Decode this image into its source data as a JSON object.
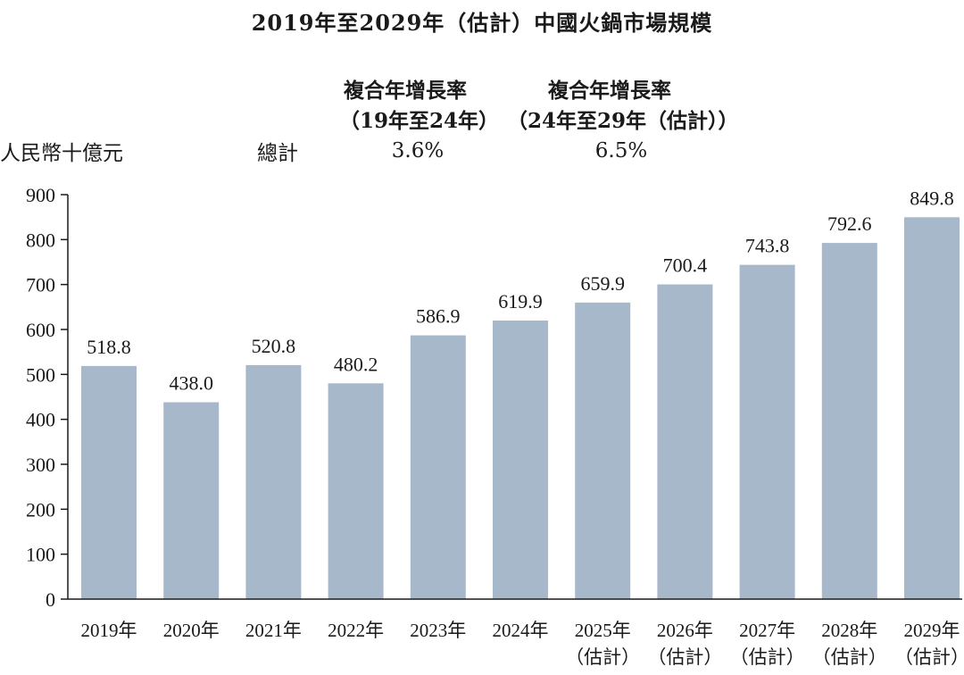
{
  "header": {
    "title": "2019年至2029年（估計）中國火鍋市場規模",
    "cagr_heading_1": "複合年增長率",
    "cagr_period_1": "（19年至24年）",
    "cagr_heading_2": "複合年增長率",
    "cagr_period_2": "（24年至29年（估計））",
    "unit_label": "人民幣十億元",
    "total_label": "總計",
    "cagr_value_1": "3.6%",
    "cagr_value_2": "6.5%"
  },
  "colors": {
    "bar": "#a8b8cb",
    "axis": "#1a1a1a",
    "text": "#1a1a1a"
  },
  "chart_data": {
    "type": "bar",
    "categories": [
      [
        "2019年"
      ],
      [
        "2020年"
      ],
      [
        "2021年"
      ],
      [
        "2022年"
      ],
      [
        "2023年"
      ],
      [
        "2024年"
      ],
      [
        "2025年",
        "（估計）"
      ],
      [
        "2026年",
        "（估計）"
      ],
      [
        "2027年",
        "（估計）"
      ],
      [
        "2028年",
        "（估計）"
      ],
      [
        "2029年",
        "（估計）"
      ]
    ],
    "values": [
      518.8,
      438.0,
      520.8,
      480.2,
      586.9,
      619.9,
      659.9,
      700.4,
      743.8,
      792.6,
      849.8
    ],
    "value_labels": [
      "518.8",
      "438.0",
      "520.8",
      "480.2",
      "586.9",
      "619.9",
      "659.9",
      "700.4",
      "743.8",
      "792.6",
      "849.8"
    ],
    "ylim": [
      0,
      900
    ],
    "yticks": [
      0,
      100,
      200,
      300,
      400,
      500,
      600,
      700,
      800,
      900
    ],
    "ylabel": "人民幣十億元",
    "grid": false,
    "legend": "none"
  }
}
